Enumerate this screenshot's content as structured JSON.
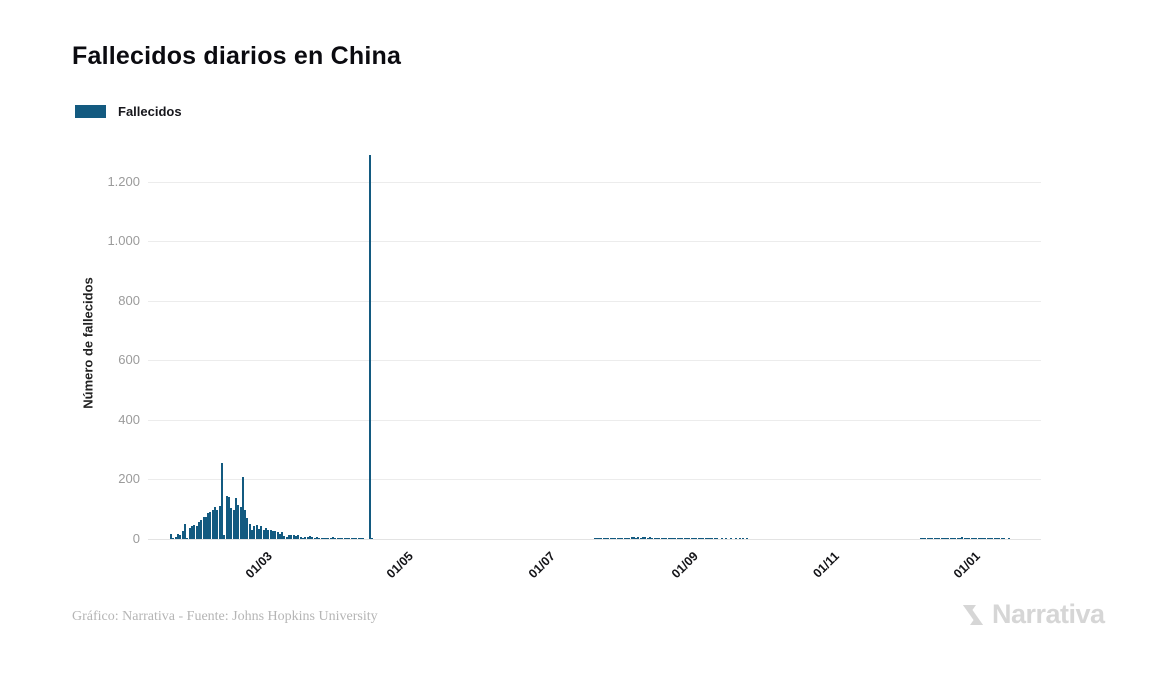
{
  "title": "Fallecidos diarios en China",
  "legend": {
    "label": "Fallecidos",
    "swatch_color": "#135a80"
  },
  "footer": {
    "credit": "Gráfico: Narrativa - Fuente: Johns Hopkins University",
    "brand": "Narrativa"
  },
  "colors": {
    "bar": "#135a80",
    "grid": "#ececec",
    "tick_text": "#9b9b9b",
    "brand_gray": "#d6d6d6"
  },
  "chart_data": {
    "type": "bar",
    "title": "Fallecidos diarios en China",
    "series_name": "Fallecidos",
    "xlabel": "",
    "ylabel": "Número de fallecidos",
    "bar_color": "#135a80",
    "grid": true,
    "legend_position": "top-left",
    "ylim": [
      0,
      1300
    ],
    "yticks": {
      "values": [
        0,
        200,
        400,
        600,
        800,
        1000,
        1200
      ],
      "labels": [
        "0",
        "200",
        "400",
        "600",
        "800",
        "1.000",
        "1.200"
      ]
    },
    "xticks": {
      "dates": [
        "2020-03-01",
        "2020-05-01",
        "2020-07-01",
        "2020-09-01",
        "2020-11-01",
        "2021-01-01"
      ],
      "labels": [
        "01/03",
        "01/05",
        "01/07",
        "01/09",
        "01/11",
        "01/01"
      ]
    },
    "x_domain": {
      "start": "2020-01-12",
      "days": 386
    },
    "points": [
      [
        "2020-01-22",
        17
      ],
      [
        "2020-01-23",
        1
      ],
      [
        "2020-01-24",
        8
      ],
      [
        "2020-01-25",
        16
      ],
      [
        "2020-01-26",
        14
      ],
      [
        "2020-01-27",
        26
      ],
      [
        "2020-01-28",
        49
      ],
      [
        "2020-01-29",
        1
      ],
      [
        "2020-01-30",
        38
      ],
      [
        "2020-01-31",
        43
      ],
      [
        "2020-02-01",
        46
      ],
      [
        "2020-02-02",
        45
      ],
      [
        "2020-02-03",
        57
      ],
      [
        "2020-02-04",
        65
      ],
      [
        "2020-02-05",
        73
      ],
      [
        "2020-02-06",
        73
      ],
      [
        "2020-02-07",
        86
      ],
      [
        "2020-02-08",
        89
      ],
      [
        "2020-02-09",
        97
      ],
      [
        "2020-02-10",
        108
      ],
      [
        "2020-02-11",
        97
      ],
      [
        "2020-02-12",
        112
      ],
      [
        "2020-02-13",
        254
      ],
      [
        "2020-02-14",
        13
      ],
      [
        "2020-02-15",
        144
      ],
      [
        "2020-02-16",
        142
      ],
      [
        "2020-02-17",
        105
      ],
      [
        "2020-02-18",
        98
      ],
      [
        "2020-02-19",
        139
      ],
      [
        "2020-02-20",
        115
      ],
      [
        "2020-02-21",
        109
      ],
      [
        "2020-02-22",
        208
      ],
      [
        "2020-02-23",
        97
      ],
      [
        "2020-02-24",
        71
      ],
      [
        "2020-02-25",
        52
      ],
      [
        "2020-02-26",
        29
      ],
      [
        "2020-02-27",
        44
      ],
      [
        "2020-02-28",
        47
      ],
      [
        "2020-02-29",
        35
      ],
      [
        "2020-03-01",
        42
      ],
      [
        "2020-03-02",
        31
      ],
      [
        "2020-03-03",
        38
      ],
      [
        "2020-03-04",
        31
      ],
      [
        "2020-03-05",
        30
      ],
      [
        "2020-03-06",
        28
      ],
      [
        "2020-03-07",
        27
      ],
      [
        "2020-03-08",
        22
      ],
      [
        "2020-03-09",
        17
      ],
      [
        "2020-03-10",
        22
      ],
      [
        "2020-03-11",
        11
      ],
      [
        "2020-03-12",
        7
      ],
      [
        "2020-03-13",
        13
      ],
      [
        "2020-03-14",
        14
      ],
      [
        "2020-03-15",
        13
      ],
      [
        "2020-03-16",
        11
      ],
      [
        "2020-03-17",
        13
      ],
      [
        "2020-03-18",
        8
      ],
      [
        "2020-03-19",
        3
      ],
      [
        "2020-03-20",
        7
      ],
      [
        "2020-03-21",
        6
      ],
      [
        "2020-03-22",
        9
      ],
      [
        "2020-03-23",
        7
      ],
      [
        "2020-03-24",
        4
      ],
      [
        "2020-03-25",
        6
      ],
      [
        "2020-03-26",
        5
      ],
      [
        "2020-03-27",
        3
      ],
      [
        "2020-03-28",
        5
      ],
      [
        "2020-03-29",
        4
      ],
      [
        "2020-03-30",
        2
      ],
      [
        "2020-03-31",
        5
      ],
      [
        "2020-04-01",
        7
      ],
      [
        "2020-04-02",
        4
      ],
      [
        "2020-04-03",
        3
      ],
      [
        "2020-04-04",
        4
      ],
      [
        "2020-04-05",
        3
      ],
      [
        "2020-04-06",
        2
      ],
      [
        "2020-04-07",
        2
      ],
      [
        "2020-04-08",
        2
      ],
      [
        "2020-04-09",
        1
      ],
      [
        "2020-04-10",
        1
      ],
      [
        "2020-04-11",
        2
      ],
      [
        "2020-04-12",
        1
      ],
      [
        "2020-04-13",
        1
      ],
      [
        "2020-04-14",
        1
      ],
      [
        "2020-04-17",
        1290
      ],
      [
        "2020-04-18",
        1
      ],
      [
        "2020-07-23",
        1
      ],
      [
        "2020-07-24",
        2
      ],
      [
        "2020-07-25",
        1
      ],
      [
        "2020-07-26",
        2
      ],
      [
        "2020-07-27",
        1
      ],
      [
        "2020-07-28",
        2
      ],
      [
        "2020-07-29",
        3
      ],
      [
        "2020-07-30",
        2
      ],
      [
        "2020-07-31",
        3
      ],
      [
        "2020-08-01",
        2
      ],
      [
        "2020-08-02",
        3
      ],
      [
        "2020-08-03",
        4
      ],
      [
        "2020-08-04",
        3
      ],
      [
        "2020-08-05",
        5
      ],
      [
        "2020-08-06",
        4
      ],
      [
        "2020-08-07",
        5
      ],
      [
        "2020-08-08",
        8
      ],
      [
        "2020-08-09",
        6
      ],
      [
        "2020-08-10",
        5
      ],
      [
        "2020-08-11",
        6
      ],
      [
        "2020-08-12",
        5
      ],
      [
        "2020-08-13",
        7
      ],
      [
        "2020-08-14",
        6
      ],
      [
        "2020-08-15",
        5
      ],
      [
        "2020-08-16",
        6
      ],
      [
        "2020-08-17",
        4
      ],
      [
        "2020-08-18",
        3
      ],
      [
        "2020-08-19",
        4
      ],
      [
        "2020-08-20",
        3
      ],
      [
        "2020-08-21",
        2
      ],
      [
        "2020-08-22",
        3
      ],
      [
        "2020-08-23",
        2
      ],
      [
        "2020-08-24",
        3
      ],
      [
        "2020-08-25",
        2
      ],
      [
        "2020-08-26",
        2
      ],
      [
        "2020-08-27",
        3
      ],
      [
        "2020-08-28",
        2
      ],
      [
        "2020-08-29",
        1
      ],
      [
        "2020-08-30",
        2
      ],
      [
        "2020-08-31",
        1
      ],
      [
        "2020-09-01",
        2
      ],
      [
        "2020-09-02",
        1
      ],
      [
        "2020-09-03",
        3
      ],
      [
        "2020-09-04",
        2
      ],
      [
        "2020-09-05",
        3
      ],
      [
        "2020-09-06",
        1
      ],
      [
        "2020-09-07",
        2
      ],
      [
        "2020-09-08",
        2
      ],
      [
        "2020-09-09",
        1
      ],
      [
        "2020-09-10",
        1
      ],
      [
        "2020-09-11",
        2
      ],
      [
        "2020-09-12",
        2
      ],
      [
        "2020-09-13",
        1
      ],
      [
        "2020-09-14",
        1
      ],
      [
        "2020-09-16",
        1
      ],
      [
        "2020-09-18",
        2
      ],
      [
        "2020-09-20",
        1
      ],
      [
        "2020-09-22",
        1
      ],
      [
        "2020-09-24",
        1
      ],
      [
        "2020-09-25",
        1
      ],
      [
        "2020-09-27",
        1
      ],
      [
        "2020-12-11",
        1
      ],
      [
        "2020-12-12",
        1
      ],
      [
        "2020-12-13",
        2
      ],
      [
        "2020-12-14",
        1
      ],
      [
        "2020-12-15",
        2
      ],
      [
        "2020-12-16",
        2
      ],
      [
        "2020-12-17",
        3
      ],
      [
        "2020-12-18",
        2
      ],
      [
        "2020-12-19",
        3
      ],
      [
        "2020-12-20",
        2
      ],
      [
        "2020-12-21",
        3
      ],
      [
        "2020-12-22",
        4
      ],
      [
        "2020-12-23",
        5
      ],
      [
        "2020-12-24",
        4
      ],
      [
        "2020-12-25",
        5
      ],
      [
        "2020-12-26",
        4
      ],
      [
        "2020-12-27",
        3
      ],
      [
        "2020-12-28",
        4
      ],
      [
        "2020-12-29",
        6
      ],
      [
        "2020-12-30",
        5
      ],
      [
        "2020-12-31",
        4
      ],
      [
        "2021-01-01",
        3
      ],
      [
        "2021-01-02",
        5
      ],
      [
        "2021-01-03",
        3
      ],
      [
        "2021-01-04",
        4
      ],
      [
        "2021-01-05",
        3
      ],
      [
        "2021-01-06",
        2
      ],
      [
        "2021-01-07",
        3
      ],
      [
        "2021-01-08",
        2
      ],
      [
        "2021-01-09",
        2
      ],
      [
        "2021-01-10",
        1
      ],
      [
        "2021-01-11",
        2
      ],
      [
        "2021-01-12",
        1
      ],
      [
        "2021-01-13",
        1
      ],
      [
        "2021-01-14",
        2
      ],
      [
        "2021-01-15",
        1
      ],
      [
        "2021-01-16",
        1
      ],
      [
        "2021-01-18",
        1
      ]
    ]
  }
}
